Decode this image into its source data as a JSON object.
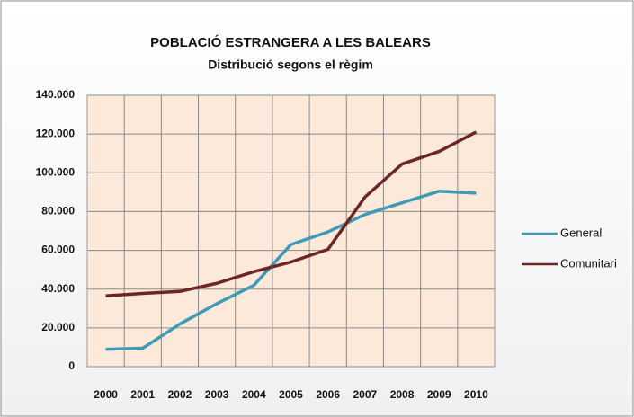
{
  "chart_data": {
    "type": "line",
    "title": "POBLACIÓ ESTRANGERA A LES BALEARS",
    "subtitle": "Distribució segons el règim",
    "categories": [
      "2000",
      "2001",
      "2002",
      "2003",
      "2004",
      "2005",
      "2006",
      "2007",
      "2008",
      "2009",
      "2010"
    ],
    "series": [
      {
        "name": "General",
        "color": "#3f9bb5",
        "values": [
          9000,
          9500,
          22000,
          32500,
          42000,
          63000,
          69500,
          78500,
          84500,
          90500,
          89500
        ]
      },
      {
        "name": "Comunitari",
        "color": "#6e2624",
        "values": [
          36500,
          37800,
          38800,
          43000,
          49000,
          54000,
          60500,
          87500,
          104500,
          111000,
          121000
        ]
      }
    ],
    "ylim": [
      0,
      140000
    ],
    "yticks": [
      0,
      {
        "value": 20000,
        "label": "20.000"
      },
      {
        "value": 40000,
        "label": "40.000"
      },
      {
        "value": 60000,
        "label": "60.000"
      },
      {
        "value": 80000,
        "label": "80.000"
      },
      {
        "value": 100000,
        "label": "100.000"
      },
      {
        "value": 120000,
        "label": "120.000"
      },
      {
        "value": 140000,
        "label": "140.000"
      }
    ],
    "grid": true,
    "legend": "right"
  }
}
